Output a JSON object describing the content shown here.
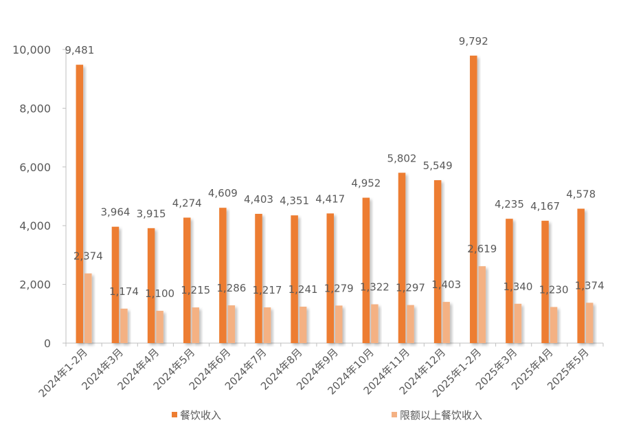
{
  "chart_data": {
    "type": "bar",
    "title": "",
    "xlabel": "",
    "ylabel": "",
    "ylim": [
      0,
      10000
    ],
    "yticks": [
      0,
      2000,
      4000,
      6000,
      8000,
      10000
    ],
    "ytick_labels": [
      "0",
      "2,000",
      "4,000",
      "6,000",
      "8,000",
      "10,000"
    ],
    "grid": false,
    "legend_position": "bottom",
    "categories": [
      "2024年1-2月",
      "2024年3月",
      "2024年4月",
      "2024年5月",
      "2024年6月",
      "2024年7月",
      "2024年8月",
      "2024年9月",
      "2024年10月",
      "2024年11月",
      "2024年12月",
      "2025年1-2月",
      "2025年3月",
      "2025年4月",
      "2025年5月"
    ],
    "series": [
      {
        "name": "餐饮收入",
        "color": "#ED7D31",
        "values": [
          9481,
          3964,
          3915,
          4274,
          4609,
          4403,
          4351,
          4417,
          4952,
          5802,
          5549,
          9792,
          4235,
          4167,
          4578
        ],
        "labels": [
          "9,481",
          "3,964",
          "3,915",
          "4,274",
          "4,609",
          "4,403",
          "4,351",
          "4,417",
          "4,952",
          "5,802",
          "5,549",
          "9,792",
          "4,235",
          "4,167",
          "4,578"
        ]
      },
      {
        "name": "限额以上餐饮收入",
        "color": "#F4B183",
        "values": [
          2374,
          1174,
          1100,
          1215,
          1286,
          1217,
          1241,
          1279,
          1322,
          1297,
          1403,
          2619,
          1340,
          1230,
          1374
        ],
        "labels": [
          "2,374",
          "1,174",
          "1,100",
          "1,215",
          "1,286",
          "1,217",
          "1,241",
          "1,279",
          "1,322",
          "1,297",
          "1,403",
          "2,619",
          "1,340",
          "1,230",
          "1,374"
        ]
      }
    ]
  }
}
